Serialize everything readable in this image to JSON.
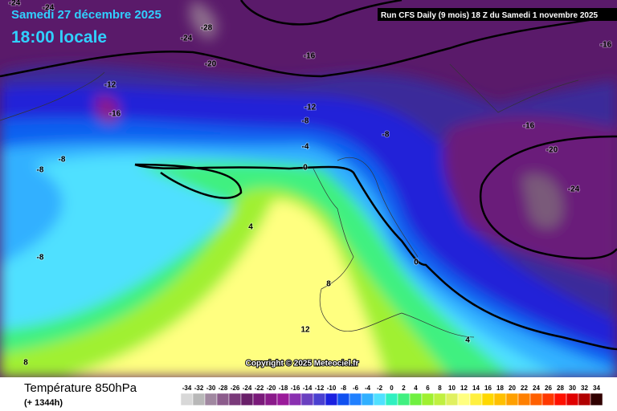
{
  "header": {
    "date": "Samedi 27 décembre 2025",
    "time": "18:00 locale",
    "run": "Run CFS Daily (9 mois) 18 Z du Samedi 1 novembre 2025"
  },
  "copyright": "Copyright © 2025 Meteociel.fr",
  "footer": {
    "title": "Température 850hPa",
    "lead": "(+ 1344h)"
  },
  "legend": {
    "values": [
      -34,
      -32,
      -30,
      -28,
      -26,
      -24,
      -22,
      -20,
      -18,
      -16,
      -14,
      -12,
      -10,
      -8,
      -6,
      -4,
      -2,
      0,
      2,
      4,
      6,
      8,
      10,
      12,
      14,
      16,
      18,
      20,
      22,
      24,
      26,
      28,
      30,
      32,
      34
    ],
    "colors": [
      "#d8d8d8",
      "#b8b8b8",
      "#a088a0",
      "#8c5c8c",
      "#7a3a7a",
      "#6a206a",
      "#7a1a7a",
      "#8a1a8a",
      "#9a1a9a",
      "#8a30b0",
      "#6a40c0",
      "#4a40d0",
      "#1a20e0",
      "#1050f0",
      "#2080ff",
      "#30b0ff",
      "#50e0ff",
      "#30f0c0",
      "#40f080",
      "#70f040",
      "#a0f030",
      "#c0f040",
      "#e0f060",
      "#ffff80",
      "#fff040",
      "#ffd800",
      "#ffc000",
      "#ffa000",
      "#ff8000",
      "#ff6000",
      "#ff3800",
      "#ff1000",
      "#e00000",
      "#b00000",
      "#300000"
    ]
  },
  "contour_labels": [
    -24,
    -24,
    -28,
    -24,
    -20,
    -16,
    -16,
    -12,
    -16,
    -12,
    -8,
    -16,
    -8,
    -4,
    -20,
    -8,
    -8,
    0,
    -24,
    4,
    -8,
    0,
    8,
    12,
    4,
    8
  ]
}
